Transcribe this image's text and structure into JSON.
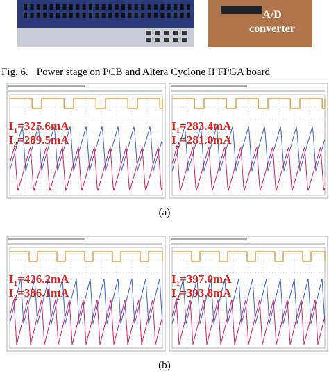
{
  "photo": {
    "board_label_line1": "A/D",
    "board_label_line2": "converter"
  },
  "caption": {
    "label": "Fig. 6.",
    "text": "Power stage on PCB and Altera Cyclone II FPGA board"
  },
  "groups": [
    {
      "label": "(a)",
      "panels": [
        {
          "currents": [
            {
              "symbol": "I",
              "index": "1",
              "reading": "=325.6mA"
            },
            {
              "symbol": "I",
              "index": "2",
              "reading": "=289.5mA"
            }
          ]
        },
        {
          "currents": [
            {
              "symbol": "I",
              "index": "1",
              "reading": "=283.4mA"
            },
            {
              "symbol": "I",
              "index": "2",
              "reading": "=281.0mA"
            }
          ]
        }
      ]
    },
    {
      "label": "(b)",
      "panels": [
        {
          "currents": [
            {
              "symbol": "I",
              "index": "1",
              "reading": "=426.2mA"
            },
            {
              "symbol": "I",
              "index": "2",
              "reading": "=386.1mA"
            }
          ]
        },
        {
          "currents": [
            {
              "symbol": "I",
              "index": "1",
              "reading": "=397.0mA"
            },
            {
              "symbol": "I",
              "index": "2",
              "reading": "=393.8mA"
            }
          ]
        }
      ]
    }
  ]
}
